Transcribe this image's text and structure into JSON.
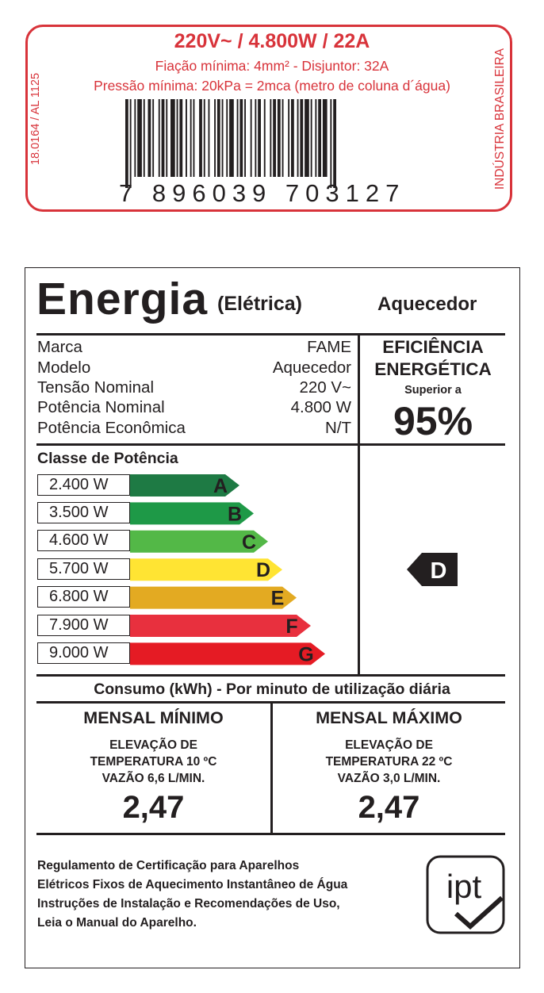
{
  "sticker": {
    "main_spec": "220V~  / 4.800W / 22A",
    "line1": "Fiação mínima: 4mm² - Disjuntor: 32A",
    "line2": "Pressão mínima: 20kPa = 2mca (metro de coluna d´água)",
    "side_left": "18.0164 / AL 1125",
    "side_right": "INDÚSTRIA BRASILEIRA",
    "barcode_digits": "7 896039 703127"
  },
  "header": {
    "title": "Energia",
    "subtitle": "(Elétrica)",
    "product": "Aquecedor"
  },
  "info": [
    {
      "label": "Marca",
      "value": "FAME"
    },
    {
      "label": "Modelo",
      "value": "Aquecedor"
    },
    {
      "label": "Tensão Nominal",
      "value": "220 V~"
    },
    {
      "label": "Potência Nominal",
      "value": "4.800 W"
    },
    {
      "label": "Potência Econômica",
      "value": "N/T"
    }
  ],
  "efficiency": {
    "title_line1": "EFICIÊNCIA",
    "title_line2": "ENERGÉTICA",
    "qualifier": "Superior a",
    "value": "95%"
  },
  "classes": {
    "title": "Classe de Potência",
    "rows": [
      {
        "power": "2.400 W",
        "letter": "A",
        "color": "#1e7a44"
      },
      {
        "power": "3.500 W",
        "letter": "B",
        "color": "#1e9947"
      },
      {
        "power": "4.600 W",
        "letter": "C",
        "color": "#53b847"
      },
      {
        "power": "5.700 W",
        "letter": "D",
        "color": "#ffe433"
      },
      {
        "power": "6.800 W",
        "letter": "E",
        "color": "#e3aa22"
      },
      {
        "power": "7.900 W",
        "letter": "F",
        "color": "#e8303e"
      },
      {
        "power": "9.000 W",
        "letter": "G",
        "color": "#e51b24"
      }
    ],
    "rating": "D"
  },
  "consumo": {
    "title": "Consumo (kWh) - Por minuto de utilização diária",
    "min": {
      "title": "MENSAL MÍNIMO",
      "line1": "ELEVAÇÃO DE",
      "line2": "TEMPERATURA 10 ºC",
      "line3": "VAZÃO 6,6 L/MIN.",
      "value": "2,47"
    },
    "max": {
      "title": "MENSAL MÁXIMO",
      "line1": "ELEVAÇÃO DE",
      "line2": "TEMPERATURA 22 ºC",
      "line3": "VAZÃO 3,0 L/MIN.",
      "value": "2,47"
    }
  },
  "footer": {
    "line1": "Regulamento de Certificação para Aparelhos",
    "line2": "Elétricos Fixos de Aquecimento Instantâneo de Água",
    "line3": "Instruções de Instalação e Recomendações de Uso,",
    "line4": "Leia o Manual do Aparelho.",
    "logo_text": "ipt"
  }
}
